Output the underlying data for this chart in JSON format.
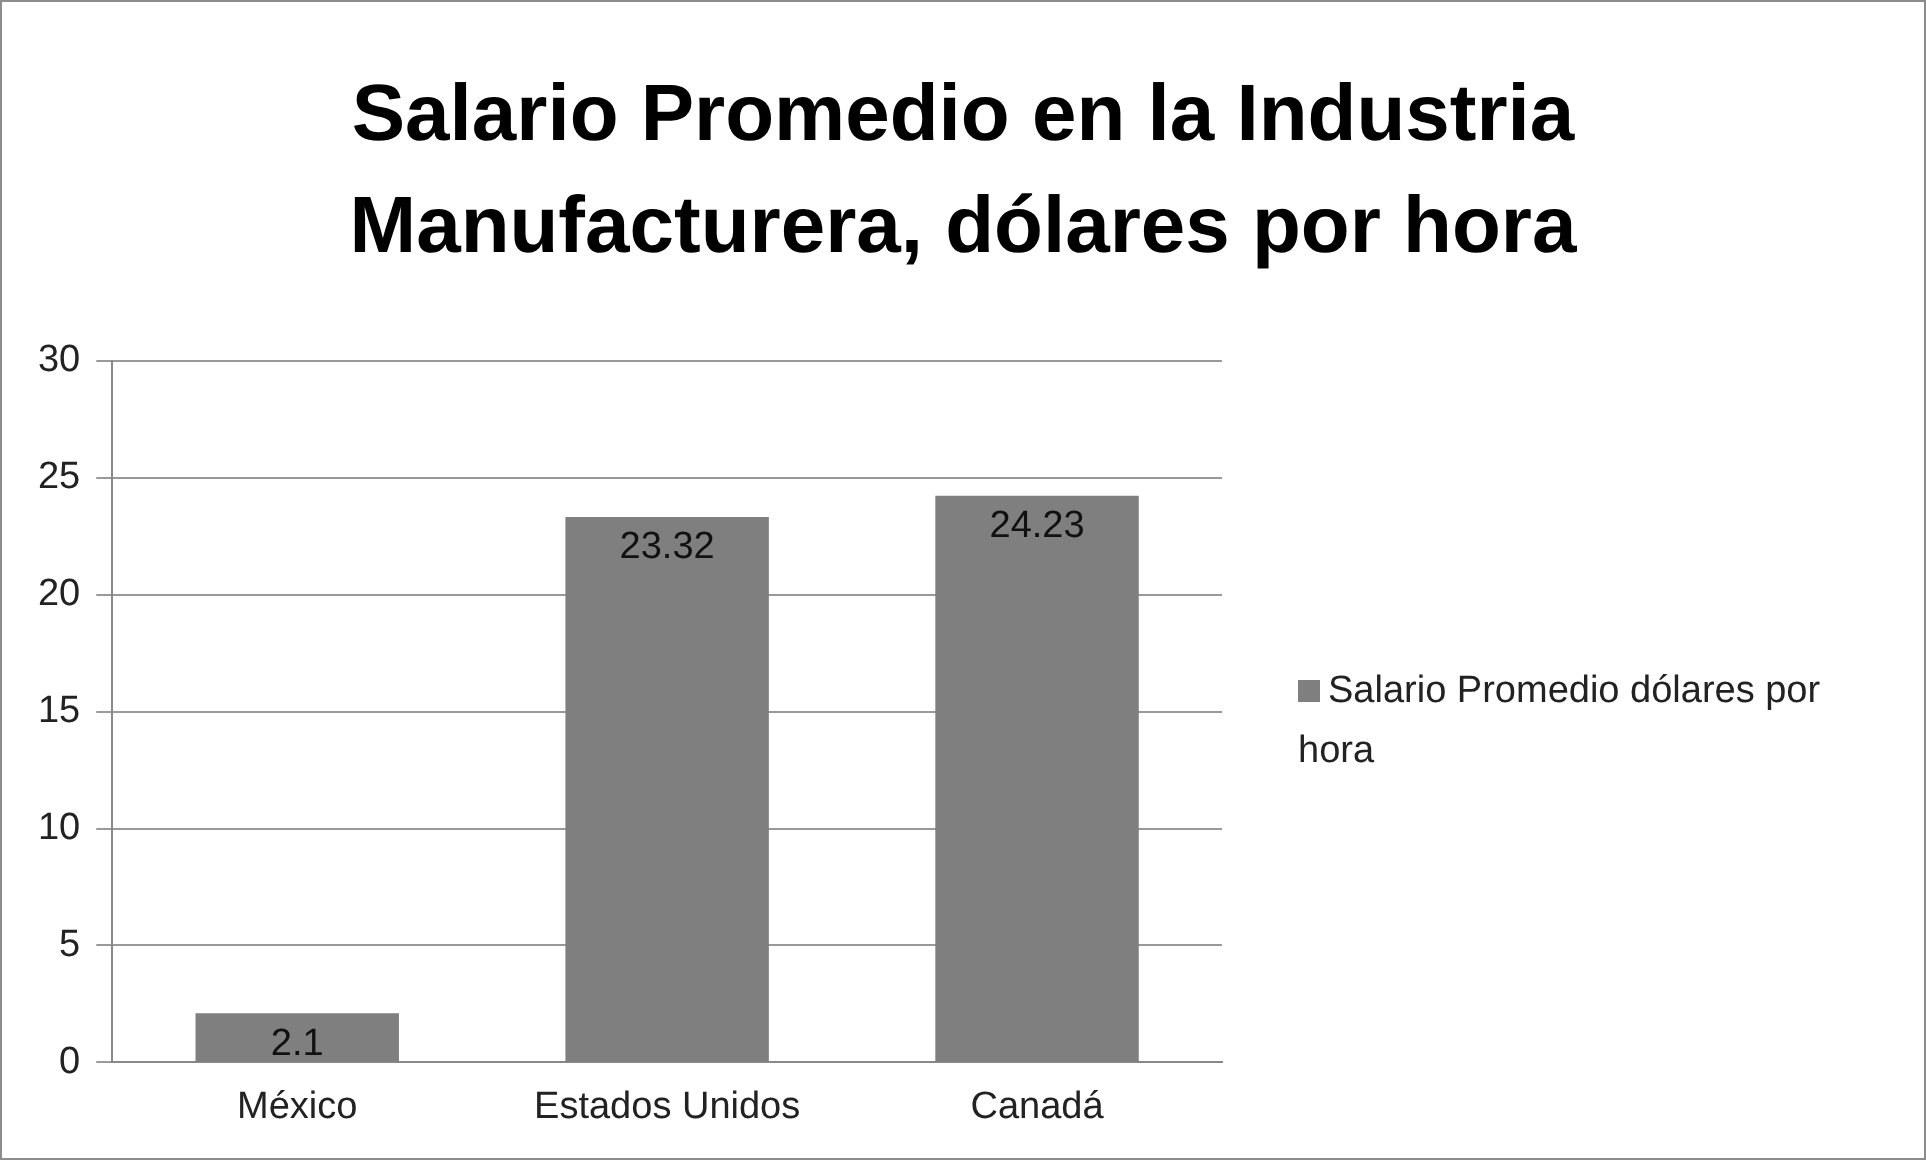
{
  "chart_data": {
    "type": "bar",
    "title": "Salario Promedio en la Industria Manufacturera, dólares por hora",
    "categories": [
      "México",
      "Estados Unidos",
      "Canadá"
    ],
    "series": [
      {
        "name": "Salario Promedio dólares por hora",
        "color": "#7f7f7f",
        "values": [
          2.1,
          23.32,
          24.23
        ]
      }
    ],
    "ylim": [
      0,
      30
    ],
    "yticks": [
      0,
      5,
      10,
      15,
      20,
      25,
      30
    ],
    "grid": "y",
    "legend": "right",
    "data_labels": true
  }
}
